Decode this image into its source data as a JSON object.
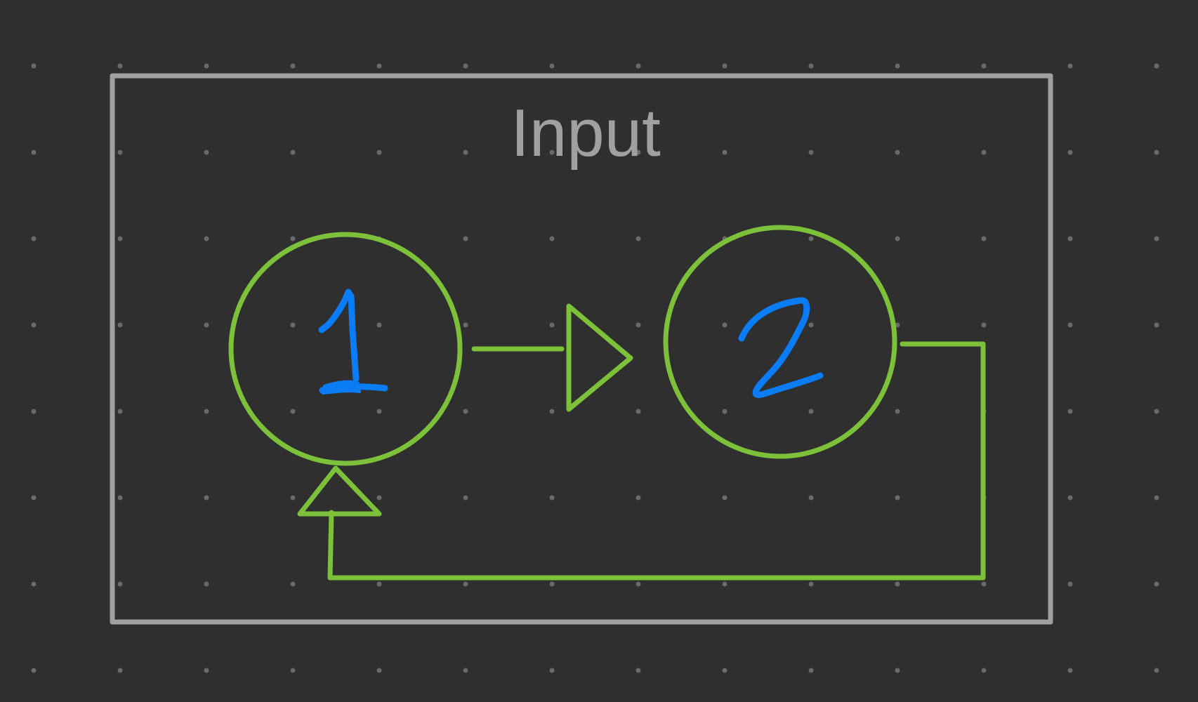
{
  "frame": {
    "label": "Input"
  },
  "nodes": [
    {
      "id": "node-1",
      "label": "1"
    },
    {
      "id": "node-2",
      "label": "2"
    }
  ],
  "edges": [
    {
      "from": "node-1",
      "to": "node-2"
    },
    {
      "from": "node-2",
      "to": "node-1"
    }
  ],
  "colors": {
    "background": "#2f2f2f",
    "grid_dot": "#6a6a6a",
    "frame": "#a0a0a0",
    "node_stroke": "#7dc13a",
    "digit": "#0a7cf5"
  }
}
